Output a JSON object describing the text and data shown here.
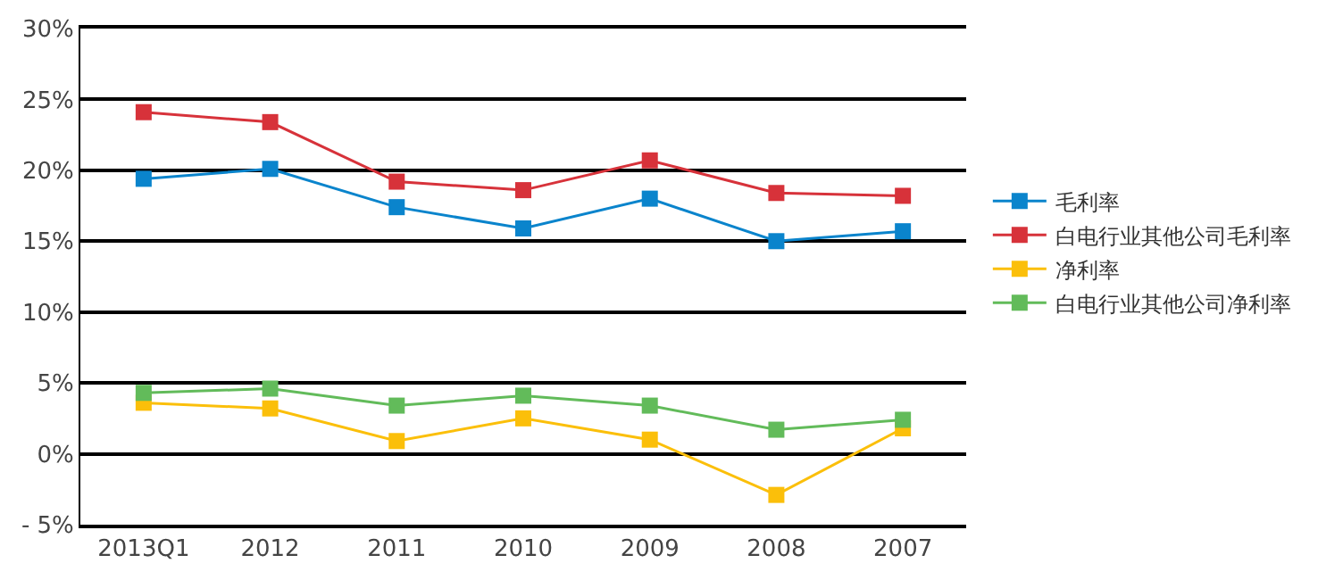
{
  "chart_data": {
    "type": "line",
    "categories": [
      "2013Q1",
      "2012",
      "2011",
      "2010",
      "2009",
      "2008",
      "2007"
    ],
    "series": [
      {
        "name": "毛利率",
        "color": "#0a84cc",
        "values": [
          19.4,
          20.1,
          17.4,
          15.9,
          18.0,
          15.0,
          15.7
        ]
      },
      {
        "name": "白电行业其他公司毛利率",
        "color": "#d7323a",
        "values": [
          24.1,
          23.4,
          19.2,
          18.6,
          20.7,
          18.4,
          18.2
        ]
      },
      {
        "name": "净利率",
        "color": "#fbbf0a",
        "values": [
          3.6,
          3.2,
          0.9,
          2.5,
          1.0,
          -2.9,
          1.8
        ]
      },
      {
        "name": "白电行业其他公司净利率",
        "color": "#62bb5a",
        "values": [
          4.3,
          4.6,
          3.4,
          4.1,
          3.4,
          1.7,
          2.4
        ]
      }
    ],
    "ylim": [
      -5,
      30
    ],
    "yticks": [
      {
        "value": -5,
        "label": "- 5%"
      },
      {
        "value": 0,
        "label": "0%"
      },
      {
        "value": 5,
        "label": "5%"
      },
      {
        "value": 10,
        "label": "10%"
      },
      {
        "value": 15,
        "label": "15%"
      },
      {
        "value": 20,
        "label": "20%"
      },
      {
        "value": 25,
        "label": "25%"
      },
      {
        "value": 30,
        "label": "30%"
      }
    ],
    "grid": "y",
    "legend": "right",
    "marker": "square",
    "line_style": "solid"
  }
}
